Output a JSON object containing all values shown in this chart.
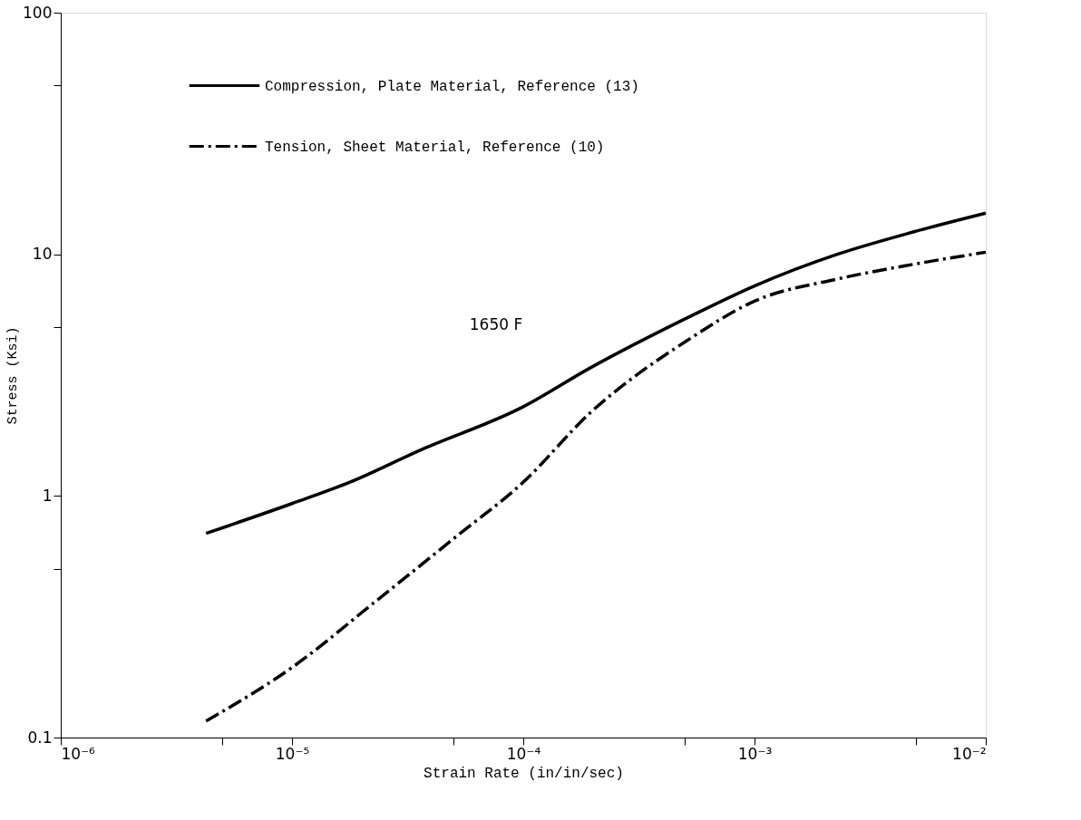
{
  "chart_data": {
    "type": "line",
    "xlabel": "Strain Rate (in/in/sec)",
    "ylabel": "Stress (Ksi)",
    "log": "xy",
    "grid": false,
    "legend": "top left",
    "marker": "none",
    "xlim": [
      1e-06,
      0.01
    ],
    "ylim": [
      0.1,
      100
    ],
    "xticks": [
      {
        "value": 1e-06,
        "label": "10⁻⁶"
      },
      {
        "value": 5e-06,
        "label": null
      },
      {
        "value": 1e-05,
        "label": "10⁻⁵"
      },
      {
        "value": 5e-05,
        "label": null
      },
      {
        "value": 0.0001,
        "label": "10⁻⁴"
      },
      {
        "value": 0.0005,
        "label": null
      },
      {
        "value": 0.001,
        "label": "10⁻³"
      },
      {
        "value": 0.005,
        "label": null
      },
      {
        "value": 0.01,
        "label": "10⁻²"
      }
    ],
    "yticks": [
      {
        "value": 0.1,
        "label": "0.1"
      },
      {
        "value": 0.5,
        "label": null
      },
      1,
      {
        "value": 5,
        "label": null
      },
      10,
      {
        "value": 50,
        "label": null
      },
      100
    ],
    "annotations": [
      "1650 F"
    ],
    "series": [
      {
        "name": "Compression, Plate Material, Reference (13)",
        "color": "#000000",
        "line_style": "solid",
        "x": [
          4.25e-06,
          1e-05,
          1.78e-05,
          3.6e-05,
          0.0001,
          0.000193,
          0.000508,
          0.001,
          0.00228,
          0.0049,
          0.01
        ],
        "values": [
          0.7,
          0.93,
          1.14,
          1.55,
          2.34,
          3.37,
          5.44,
          7.4,
          10,
          12.4,
          14.8
        ]
      },
      {
        "name": "Tension, Sheet Material, Reference (10)",
        "color": "#000000",
        "line_style": "dashdot",
        "x": [
          4.25e-06,
          1e-05,
          2.33e-05,
          5.14e-05,
          0.0001,
          0.000193,
          0.000508,
          0.001,
          0.00228,
          0.0049,
          0.01
        ],
        "values": [
          0.117,
          0.195,
          0.37,
          0.68,
          1.14,
          2.19,
          4.38,
          6.4,
          7.9,
          9.1,
          10.2
        ]
      }
    ]
  }
}
